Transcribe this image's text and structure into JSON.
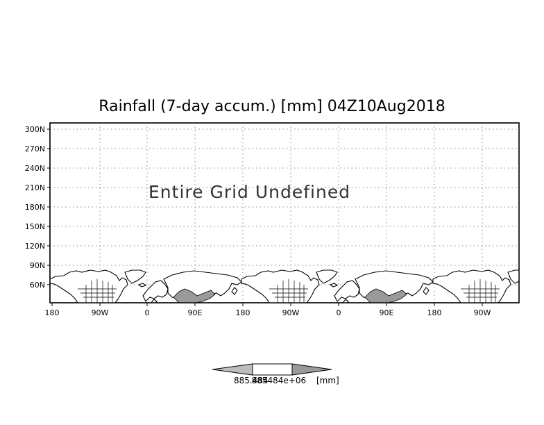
{
  "map": {
    "title": "Rainfall (7-day accum.) [mm] 04Z10Aug2018",
    "message": "Entire Grid Undefined",
    "lat_labels": [
      "300N",
      "270N",
      "240N",
      "210N",
      "180N",
      "150N",
      "120N",
      "90N",
      "60N"
    ],
    "lon_labels": [
      "180",
      "90W",
      "0",
      "90E",
      "180",
      "90W",
      "0",
      "90E",
      "180",
      "90W"
    ],
    "projection": "latlon",
    "grid": "dotted"
  },
  "legend": {
    "min_label": "885.484",
    "max_label": "885484e+06",
    "unit": "[mm]",
    "colors": {
      "left_triangle": "#bdbdbd",
      "middle": "#ffffff",
      "right_triangle": "#9a9a9a"
    }
  },
  "colors": {
    "shade": "#9a9a9a",
    "grid": "#8a8a8a",
    "text": "#000000"
  }
}
